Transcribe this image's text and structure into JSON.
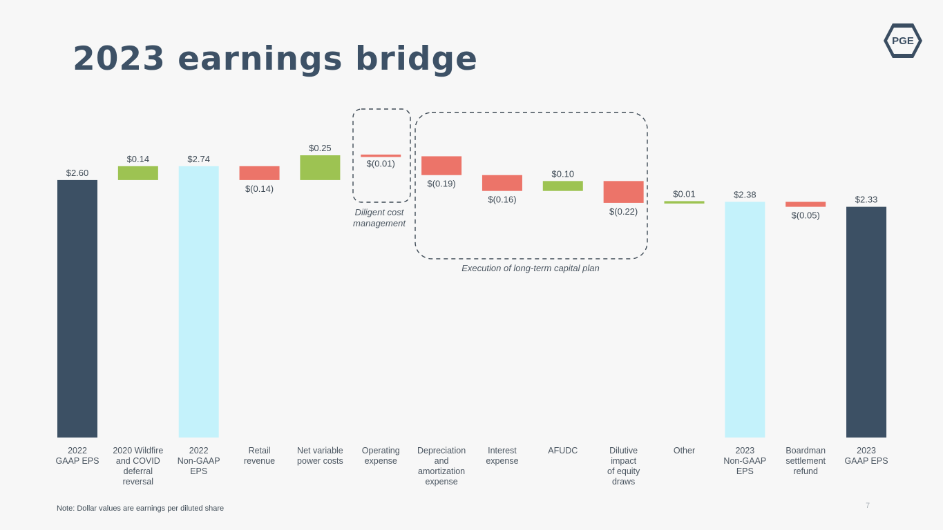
{
  "slide": {
    "title": "2023 earnings bridge",
    "logo_text": "PGE",
    "note": "Note: Dollar values are earnings per diluted share",
    "page_number": "7"
  },
  "colors": {
    "total_dark": "#3c5064",
    "total_light": "#c4f2fb",
    "increase": "#9dc352",
    "decrease": "#ec7469",
    "title": "#3d5166"
  },
  "chart_data": {
    "type": "bar",
    "subtype": "waterfall",
    "title": "",
    "xlabel": "",
    "ylabel": "",
    "grid": false,
    "legend": "none",
    "categories": [
      "2022 GAAP EPS",
      "2020 Wildfire and COVID deferral reversal",
      "2022 Non-GAAP EPS",
      "Retail revenue",
      "Net variable power costs",
      "Operating expense",
      "Depreciation and amortization expense",
      "Interest expense",
      "AFUDC",
      "Dilutive impact of equity draws",
      "Other",
      "2023 Non-GAAP EPS",
      "Boardman settlement refund",
      "2023 GAAP EPS"
    ],
    "category_lines": [
      [
        "2022",
        "GAAP EPS"
      ],
      [
        "2020 Wildfire",
        "and COVID",
        "deferral",
        "reversal"
      ],
      [
        "2022",
        "Non-GAAP",
        "EPS"
      ],
      [
        "Retail",
        "revenue"
      ],
      [
        "Net variable",
        "power costs"
      ],
      [
        "Operating",
        "expense"
      ],
      [
        "Depreciation",
        "and",
        "amortization",
        "expense"
      ],
      [
        "Interest",
        "expense"
      ],
      [
        "AFUDC"
      ],
      [
        "Dilutive",
        "impact",
        "of equity",
        "draws"
      ],
      [
        "Other"
      ],
      [
        "2023",
        "Non-GAAP",
        "EPS"
      ],
      [
        "Boardman",
        "settlement",
        "refund"
      ],
      [
        "2023",
        "GAAP EPS"
      ]
    ],
    "values": [
      2.6,
      0.14,
      2.74,
      -0.14,
      0.25,
      -0.01,
      -0.19,
      -0.16,
      0.1,
      -0.22,
      0.01,
      2.38,
      -0.05,
      2.33
    ],
    "kinds": [
      "total-dark",
      "increase",
      "total-light",
      "decrease",
      "increase",
      "decrease",
      "decrease",
      "decrease",
      "increase",
      "decrease",
      "increase",
      "total-light",
      "decrease",
      "total-dark"
    ],
    "value_labels": [
      "$2.60",
      "$0.14",
      "$2.74",
      "$(0.14)",
      "$0.25",
      "$(0.01)",
      "$(0.19)",
      "$(0.16)",
      "$0.10",
      "$(0.22)",
      "$0.01",
      "$2.38",
      "$(0.05)",
      "$2.33"
    ],
    "annotations": [
      {
        "text_lines": [
          "Diligent cost",
          "management"
        ],
        "categories": [
          "Operating expense"
        ]
      },
      {
        "text_lines": [
          "Execution of long-term capital plan"
        ],
        "categories": [
          "Depreciation and amortization expense",
          "Interest expense",
          "AFUDC",
          "Dilutive impact of equity draws"
        ]
      }
    ]
  }
}
